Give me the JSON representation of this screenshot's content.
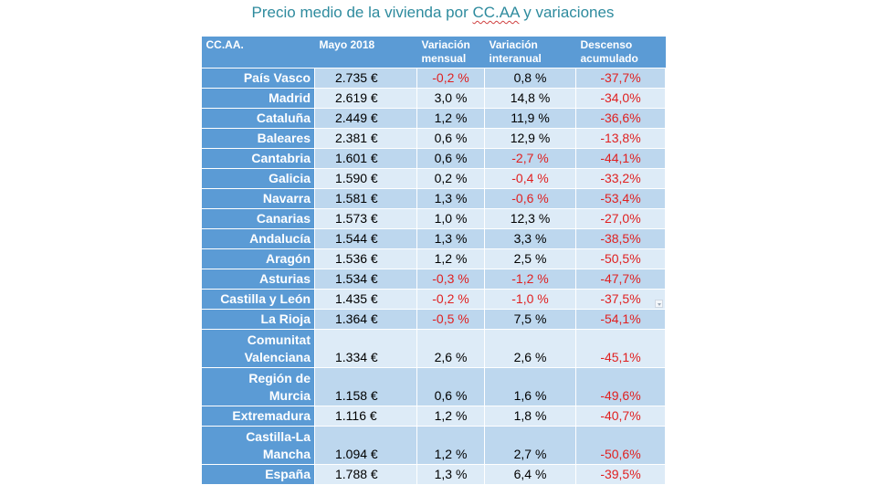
{
  "title_prefix": "Precio medio de la vivienda por ",
  "title_abbr": "CC.AA",
  "title_suffix": " y variaciones",
  "headers": [
    "CC.AA.",
    "Mayo 2018",
    "Variación mensual",
    "Variación interanual",
    "Descenso acumulado"
  ],
  "rows": [
    {
      "region": "País Vasco",
      "price": "2.735 €",
      "monthly": "-0,2 %",
      "yearly": "0,8 %",
      "accum": "-37,7%"
    },
    {
      "region": "Madrid",
      "price": "2.619 €",
      "monthly": "3,0 %",
      "yearly": "14,8 %",
      "accum": "-34,0%"
    },
    {
      "region": "Cataluña",
      "price": "2.449 €",
      "monthly": "1,2 %",
      "yearly": "11,9 %",
      "accum": "-36,6%"
    },
    {
      "region": "Baleares",
      "price": "2.381 €",
      "monthly": "0,6 %",
      "yearly": "12,9 %",
      "accum": "-13,8%"
    },
    {
      "region": "Cantabria",
      "price": "1.601 €",
      "monthly": "0,6 %",
      "yearly": "-2,7 %",
      "accum": "-44,1%"
    },
    {
      "region": "Galicia",
      "price": "1.590 €",
      "monthly": "0,2 %",
      "yearly": "-0,4 %",
      "accum": "-33,2%"
    },
    {
      "region": "Navarra",
      "price": "1.581 €",
      "monthly": "1,3 %",
      "yearly": "-0,6 %",
      "accum": "-53,4%"
    },
    {
      "region": "Canarias",
      "price": "1.573 €",
      "monthly": "1,0 %",
      "yearly": "12,3 %",
      "accum": "-27,0%"
    },
    {
      "region": "Andalucía",
      "price": "1.544 €",
      "monthly": "1,3 %",
      "yearly": "3,3 %",
      "accum": "-38,5%"
    },
    {
      "region": "Aragón",
      "price": "1.536 €",
      "monthly": "1,2 %",
      "yearly": "2,5 %",
      "accum": "-50,5%"
    },
    {
      "region": "Asturias",
      "price": "1.534 €",
      "monthly": "-0,3 %",
      "yearly": "-1,2 %",
      "accum": "-47,7%"
    },
    {
      "region": "Castilla y León",
      "price": "1.435 €",
      "monthly": "-0,2 %",
      "yearly": "-1,0 %",
      "accum": "-37,5%"
    },
    {
      "region": "La Rioja",
      "price": "1.364 €",
      "monthly": "-0,5 %",
      "yearly": "7,5 %",
      "accum": "-54,1%"
    },
    {
      "region": "Comunitat Valenciana",
      "price": "1.334 €",
      "monthly": "2,6 %",
      "yearly": "2,6 %",
      "accum": "-45,1%"
    },
    {
      "region": "Región de Murcia",
      "price": "1.158 €",
      "monthly": "0,6 %",
      "yearly": "1,6 %",
      "accum": "-49,6%"
    },
    {
      "region": "Extremadura",
      "price": "1.116 €",
      "monthly": "1,2 %",
      "yearly": "1,8 %",
      "accum": "-40,7%"
    },
    {
      "region": "Castilla-La Mancha",
      "price": "1.094 €",
      "monthly": "1,2 %",
      "yearly": "2,7 %",
      "accum": "-50,6%"
    },
    {
      "region": "España",
      "price": "1.788 €",
      "monthly": "1,3 %",
      "yearly": "6,4 %",
      "accum": "-39,5%"
    }
  ],
  "colors": {
    "header": "#5b9bd5",
    "band_dark": "#bdd7ee",
    "band_light": "#ddebf7",
    "negative": "#e02020",
    "title": "#2e8b9e"
  },
  "icons": {
    "cell_marker": "dropdown-arrow-icon"
  }
}
